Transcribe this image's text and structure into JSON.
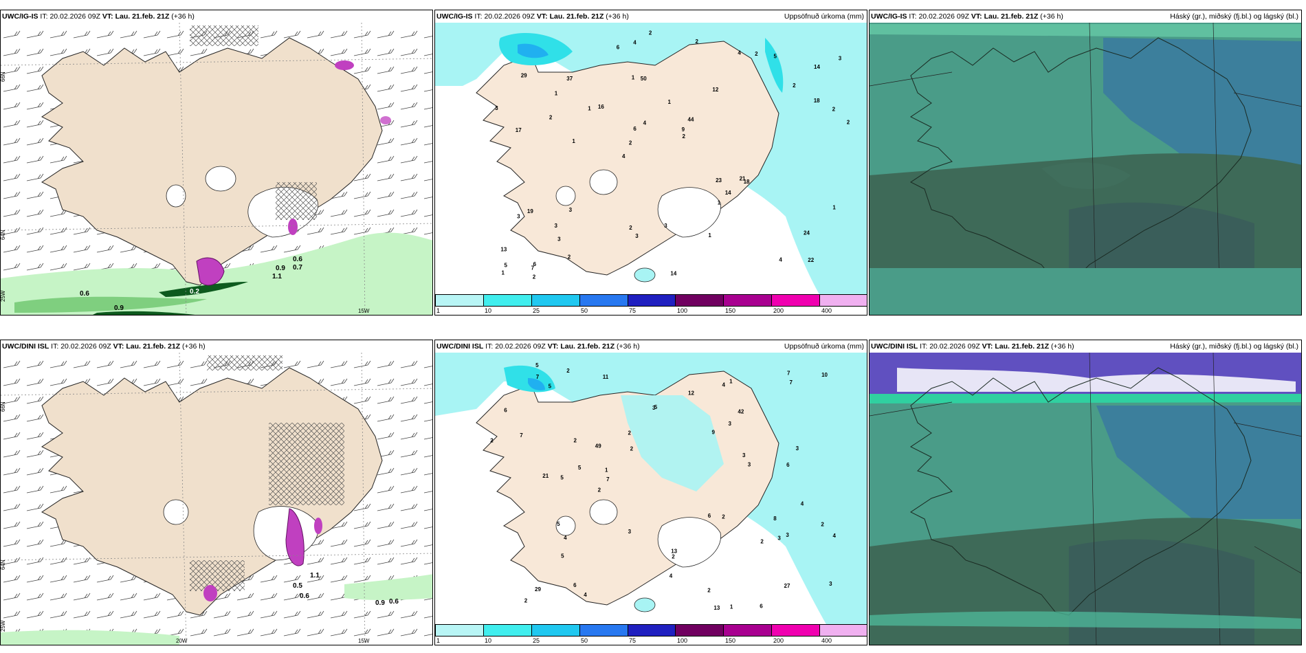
{
  "panels": [
    {
      "id": "ig-wind",
      "model": "UWC/IG-IS",
      "it_label": "IT:",
      "it": "20.02.2026 09Z",
      "vt_label": "VT:",
      "vt": "Lau. 21.feb. 21Z",
      "lead": "(+36 h)",
      "title_right": "",
      "labels": {
        "lat66": "66N",
        "lat64": "64N",
        "lon25": "25W",
        "lon15": "15W",
        "v1": "0.6",
        "v2": "0.9",
        "v3": "0.2",
        "v4": "0.6",
        "v5": "0.9",
        "v6": "0.7",
        "v7": "1.1"
      }
    },
    {
      "id": "ig-precip",
      "model": "UWC/IG-IS",
      "it_label": "IT:",
      "it": "20.02.2026 09Z",
      "vt_label": "VT:",
      "vt": "Lau. 21.feb. 21Z",
      "lead": "(+36 h)",
      "title_right": "Uppsöfnuð úrkoma (mm)",
      "values": [
        "22",
        "17",
        "14",
        "4",
        "12",
        "6",
        "1",
        "1",
        "19",
        "16",
        "13",
        "3",
        "50",
        "44",
        "18",
        "29",
        "4",
        "2",
        "23",
        "18",
        "2",
        "2",
        "6",
        "37",
        "4",
        "3",
        "4",
        "24",
        "21",
        "14",
        "1",
        "2",
        "1",
        "2",
        "2",
        "9",
        "5",
        "3",
        "2",
        "3",
        "2",
        "3",
        "14",
        "1",
        "3",
        "2",
        "1",
        "3",
        "5",
        "2",
        "1",
        "3",
        "1",
        "2",
        "7",
        "2",
        "6",
        "4",
        "1"
      ]
    },
    {
      "id": "ig-cloud",
      "model": "UWC/IG-IS",
      "it_label": "IT:",
      "it": "20.02.2026 09Z",
      "vt_label": "VT:",
      "vt": "Lau. 21.feb. 21Z",
      "lead": "(+36 h)",
      "title_right": "Háský (gr.), miðský (fj.bl.) og lágský (bl.)"
    },
    {
      "id": "dini-wind",
      "model": "UWC/DINI ISL",
      "it_label": "IT:",
      "it": "20.02.2026 09Z",
      "vt_label": "VT:",
      "vt": "Lau. 21.feb. 21Z",
      "lead": "(+36 h)",
      "title_right": "",
      "labels": {
        "lat66": "66N",
        "lat64": "64N",
        "lon25": "25W",
        "lon20": "20W",
        "lon15": "15W",
        "v1": "0.5",
        "v2": "0.6",
        "v3": "0.9",
        "v4": "0.6",
        "v5": "1.1"
      }
    },
    {
      "id": "dini-precip",
      "model": "UWC/DINI ISL",
      "it_label": "IT:",
      "it": "20.02.2026 09Z",
      "vt_label": "VT:",
      "vt": "Lau. 21.feb. 21Z",
      "lead": "(+36 h)",
      "title_right": "Uppsöfnuð úrkoma (mm)",
      "values": [
        "2",
        "6",
        "2",
        "29",
        "13",
        "49",
        "11",
        "42",
        "13",
        "6",
        "2",
        "7",
        "2",
        "3",
        "4",
        "5",
        "5",
        "6",
        "4",
        "5",
        "7",
        "8",
        "27",
        "21",
        "10",
        "9",
        "2",
        "3",
        "5",
        "5",
        "4",
        "3",
        "3",
        "2",
        "4",
        "5",
        "6",
        "7",
        "7",
        "5",
        "3",
        "3",
        "4",
        "2",
        "12",
        "6",
        "2",
        "1",
        "1",
        "1",
        "2",
        "3",
        "2",
        "3",
        "2",
        "4",
        "2",
        "7",
        "3"
      ]
    },
    {
      "id": "dini-cloud",
      "model": "UWC/DINI ISL",
      "it_label": "IT:",
      "it": "20.02.2026 09Z",
      "vt_label": "VT:",
      "vt": "Lau. 21.feb. 21Z",
      "lead": "(+36 h)",
      "title_right": "Háský (gr.), miðský (fj.bl.) og lágský (bl.)"
    }
  ],
  "legend": {
    "colors": [
      "#b8f5f5",
      "#40eeee",
      "#20c8f0",
      "#2878f0",
      "#2020c0",
      "#700060",
      "#a80090",
      "#f000b0",
      "#f0b0f0"
    ],
    "ticks": [
      "1",
      "10",
      "25",
      "50",
      "75",
      "100",
      "150",
      "200",
      "400"
    ]
  },
  "colors": {
    "land": "#f0e0cc",
    "precip_light": "#a8f4f4",
    "precip_med": "#30e0e8",
    "sea_green": "#b8f0b8",
    "dark_green": "#0a5a1a",
    "magenta": "#c040c0",
    "cloud_base": "#4a9c88",
    "cloud_dark": "#3e6a58",
    "cloud_blue": "#3a80a8",
    "cloud_violet": "#6050c0"
  }
}
